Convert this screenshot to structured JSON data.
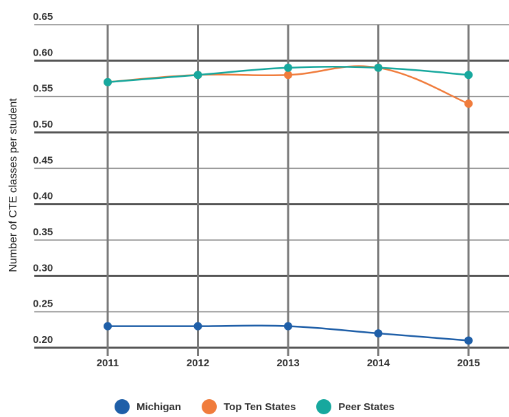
{
  "chart_data": {
    "type": "line",
    "title": "",
    "xlabel": "",
    "ylabel": "Number of CTE classes per student",
    "categories": [
      "2011",
      "2012",
      "2013",
      "2014",
      "2015"
    ],
    "ylim": [
      0.2,
      0.65
    ],
    "yticks": [
      "0.20",
      "0.25",
      "0.30",
      "0.35",
      "0.40",
      "0.45",
      "0.50",
      "0.55",
      "0.60",
      "0.65"
    ],
    "grid": true,
    "legend_position": "bottom",
    "series": [
      {
        "name": "Michigan",
        "color": "#1f5fa8",
        "values": [
          0.23,
          0.23,
          0.23,
          0.22,
          0.21
        ]
      },
      {
        "name": "Top Ten States",
        "color": "#f07c3c",
        "values": [
          0.57,
          0.58,
          0.58,
          0.59,
          0.54
        ]
      },
      {
        "name": "Peer States",
        "color": "#17a89e",
        "values": [
          0.57,
          0.58,
          0.59,
          0.59,
          0.58
        ]
      }
    ]
  }
}
